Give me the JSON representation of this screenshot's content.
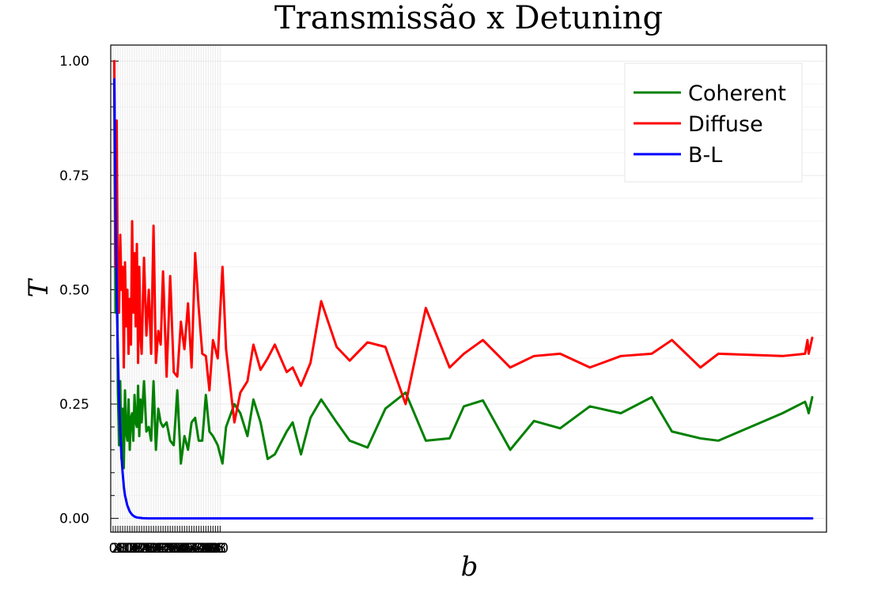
{
  "chart_data": {
    "type": "line",
    "title": "Transmissão x Detuning",
    "xlabel": "b",
    "ylabel": "T",
    "xlim": [
      -2,
      600
    ],
    "ylim": [
      -0.03,
      1.035
    ],
    "grid": true,
    "legend_position": "top-right",
    "yticks": [
      0.0,
      0.25,
      0.5,
      0.75,
      1.0
    ],
    "ytick_labels": [
      "0.00",
      "0.25",
      "0.50",
      "0.75",
      "1.00"
    ],
    "xticks": [
      0,
      2,
      4,
      6,
      8,
      10,
      12,
      14,
      16,
      18,
      20,
      22,
      24,
      26,
      28,
      30,
      32,
      34,
      36,
      38,
      40,
      42,
      44,
      46,
      48,
      50,
      52,
      54,
      56,
      58,
      60,
      62,
      64,
      66,
      68,
      70,
      72,
      74,
      76,
      78,
      80,
      82,
      84,
      86,
      88,
      90
    ],
    "xtick_labels": [
      "0",
      "2",
      "4",
      "6",
      "8",
      "10",
      "12",
      "14",
      "16",
      "18",
      "20",
      "22",
      "24",
      "26",
      "28",
      "30",
      "32",
      "34",
      "36",
      "38",
      "40",
      "42",
      "44",
      "46",
      "48",
      "50",
      "52",
      "54",
      "56",
      "58",
      "60",
      "62",
      "64",
      "66",
      "68",
      "70",
      "72",
      "74",
      "76",
      "78",
      "80",
      "82",
      "84",
      "86",
      "88",
      "90"
    ],
    "series": [
      {
        "name": "Coherent",
        "color": "#008000",
        "x": [
          1,
          2,
          3,
          4,
          5,
          6,
          7,
          8,
          9,
          10,
          11,
          12,
          13,
          14,
          15,
          16,
          17,
          18,
          19,
          20,
          21,
          22,
          23,
          24,
          26,
          28,
          30,
          32,
          34,
          36,
          38,
          40,
          42,
          45,
          48,
          51,
          54,
          57,
          60,
          63,
          66,
          69,
          72,
          75,
          78,
          81,
          84,
          88,
          92,
          95,
          102,
          107,
          113,
          118,
          124,
          130,
          136,
          146,
          151,
          158,
          166,
          175,
          188,
          199,
          214,
          229,
          246,
          263,
          283,
          295,
          311,
          334,
          354,
          376,
          401,
          427,
          453,
          470,
          494,
          509,
          563,
          582,
          584,
          585,
          588
        ],
        "y": [
          0.95,
          0.45,
          0.7,
          0.28,
          0.16,
          0.3,
          0.13,
          0.24,
          0.11,
          0.28,
          0.19,
          0.17,
          0.26,
          0.15,
          0.22,
          0.23,
          0.17,
          0.27,
          0.21,
          0.2,
          0.29,
          0.18,
          0.26,
          0.21,
          0.3,
          0.19,
          0.2,
          0.17,
          0.3,
          0.15,
          0.24,
          0.21,
          0.2,
          0.21,
          0.17,
          0.16,
          0.28,
          0.12,
          0.18,
          0.15,
          0.21,
          0.22,
          0.17,
          0.17,
          0.27,
          0.19,
          0.18,
          0.16,
          0.12,
          0.2,
          0.25,
          0.23,
          0.18,
          0.26,
          0.21,
          0.13,
          0.14,
          0.19,
          0.21,
          0.14,
          0.22,
          0.26,
          0.21,
          0.17,
          0.155,
          0.24,
          0.275,
          0.17,
          0.175,
          0.245,
          0.258,
          0.15,
          0.213,
          0.197,
          0.245,
          0.23,
          0.265,
          0.19,
          0.175,
          0.17,
          0.23,
          0.255,
          0.24,
          0.23,
          0.265
        ]
      },
      {
        "name": "Diffuse",
        "color": "#ff0000",
        "x": [
          1,
          2,
          3,
          4,
          5,
          6,
          7,
          8,
          9,
          10,
          11,
          12,
          13,
          14,
          15,
          16,
          17,
          18,
          19,
          20,
          21,
          22,
          23,
          24,
          26,
          28,
          30,
          32,
          34,
          36,
          38,
          40,
          42,
          45,
          48,
          51,
          54,
          57,
          60,
          63,
          66,
          69,
          72,
          75,
          78,
          81,
          84,
          88,
          92,
          95,
          102,
          107,
          113,
          118,
          124,
          130,
          136,
          146,
          151,
          158,
          166,
          175,
          188,
          199,
          214,
          229,
          246,
          263,
          283,
          295,
          311,
          334,
          354,
          376,
          401,
          427,
          453,
          470,
          494,
          509,
          563,
          582,
          584,
          585,
          588
        ],
        "y": [
          1.0,
          0.55,
          0.87,
          0.5,
          0.45,
          0.62,
          0.5,
          0.55,
          0.33,
          0.56,
          0.42,
          0.5,
          0.36,
          0.48,
          0.38,
          0.65,
          0.45,
          0.58,
          0.42,
          0.6,
          0.34,
          0.55,
          0.4,
          0.36,
          0.57,
          0.4,
          0.5,
          0.36,
          0.64,
          0.34,
          0.41,
          0.38,
          0.54,
          0.31,
          0.53,
          0.32,
          0.31,
          0.43,
          0.37,
          0.47,
          0.33,
          0.58,
          0.46,
          0.36,
          0.355,
          0.28,
          0.39,
          0.35,
          0.55,
          0.37,
          0.21,
          0.275,
          0.3,
          0.38,
          0.325,
          0.35,
          0.38,
          0.32,
          0.33,
          0.29,
          0.34,
          0.475,
          0.375,
          0.345,
          0.385,
          0.375,
          0.25,
          0.46,
          0.33,
          0.36,
          0.39,
          0.33,
          0.355,
          0.36,
          0.33,
          0.355,
          0.36,
          0.39,
          0.33,
          0.36,
          0.355,
          0.36,
          0.39,
          0.36,
          0.395
        ]
      },
      {
        "name": "B-L",
        "color": "#0000ff",
        "x": [
          1,
          2,
          3,
          4,
          5,
          6,
          7,
          8,
          9,
          10,
          12,
          14,
          16,
          18,
          20,
          25,
          30,
          40,
          60,
          100,
          200,
          300,
          400,
          500,
          588
        ],
        "y": [
          0.96,
          0.7,
          0.5,
          0.36,
          0.26,
          0.19,
          0.14,
          0.1,
          0.07,
          0.05,
          0.028,
          0.015,
          0.008,
          0.004,
          0.002,
          0.0005,
          0.0001,
          0.0,
          0.0,
          0.0,
          0.0,
          0.0,
          0.0,
          0.0,
          0.0
        ]
      }
    ]
  }
}
